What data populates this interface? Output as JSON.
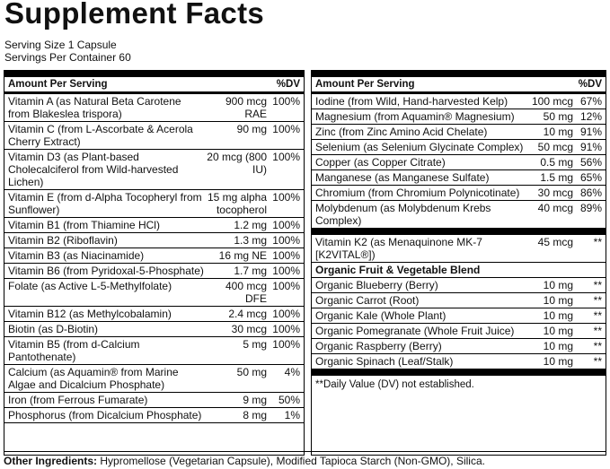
{
  "title": "Supplement Facts",
  "serving": [
    "Serving Size 1 Capsule",
    "Servings Per Container 60"
  ],
  "left": {
    "header": {
      "amount": "Amount Per Serving",
      "dv": "%DV"
    },
    "rows": [
      {
        "name": "Vitamin A (as Natural Beta Carotene from Blakeslea trispora)",
        "amount": "900 mcg RAE",
        "dv": "100%"
      },
      {
        "name": "Vitamin C (from L-Ascorbate & Acerola Cherry Extract)",
        "amount": "90 mg",
        "dv": "100%"
      },
      {
        "name": "Vitamin D3 (as Plant-based Cholecalciferol from Wild-harvested Lichen)",
        "amount": "20 mcg (800 IU)",
        "dv": "100%"
      },
      {
        "name": "Vitamin E (from d-Alpha Tocopheryl from Sunflower)",
        "amount": "15 mg alpha tocopherol",
        "dv": "100%"
      },
      {
        "name": "Vitamin B1 (from Thiamine HCl)",
        "amount": "1.2 mg",
        "dv": "100%"
      },
      {
        "name": "Vitamin B2 (Riboflavin)",
        "amount": "1.3 mg",
        "dv": "100%"
      },
      {
        "name": "Vitamin B3 (as Niacinamide)",
        "amount": "16 mg NE",
        "dv": "100%"
      },
      {
        "name": "Vitamin B6 (from Pyridoxal-5-Phosphate)",
        "amount": "1.7 mg",
        "dv": "100%"
      },
      {
        "name": "Folate (as Active L-5-Methylfolate)",
        "amount": "400 mcg DFE",
        "dv": "100%"
      },
      {
        "name": "Vitamin B12 (as Methylcobalamin)",
        "amount": "2.4 mcg",
        "dv": "100%"
      },
      {
        "name": "Biotin (as D-Biotin)",
        "amount": "30 mcg",
        "dv": "100%"
      },
      {
        "name": "Vitamin B5 (from d-Calcium Pantothenate)",
        "amount": "5 mg",
        "dv": "100%"
      },
      {
        "name": "Calcium (as Aquamin® from Marine Algae and Dicalcium Phosphate)",
        "amount": "50 mg",
        "dv": "4%"
      },
      {
        "name": "Iron (from Ferrous Fumarate)",
        "amount": "9 mg",
        "dv": "50%"
      },
      {
        "name": "Phosphorus (from Dicalcium Phosphate)",
        "amount": "8 mg",
        "dv": "1%"
      }
    ]
  },
  "right": {
    "header": {
      "amount": "Amount Per Serving",
      "dv": "%DV"
    },
    "rows": [
      {
        "name": "Iodine (from Wild, Hand-harvested Kelp)",
        "amount": "100 mcg",
        "dv": "67%"
      },
      {
        "name": "Magnesium (from Aquamin® Magnesium)",
        "amount": "50 mg",
        "dv": "12%"
      },
      {
        "name": "Zinc (from Zinc Amino Acid Chelate)",
        "amount": "10 mg",
        "dv": "91%"
      },
      {
        "name": "Selenium (as Selenium Glycinate Complex)",
        "amount": "50 mcg",
        "dv": "91%"
      },
      {
        "name": "Copper (as Copper Citrate)",
        "amount": "0.5 mg",
        "dv": "56%"
      },
      {
        "name": "Manganese (as Manganese Sulfate)",
        "amount": "1.5 mg",
        "dv": "65%"
      },
      {
        "name": "Chromium (from Chromium Polynicotinate)",
        "amount": "30 mcg",
        "dv": "86%"
      },
      {
        "name": "Molybdenum (as Molybdenum Krebs Complex)",
        "amount": "40 mcg",
        "dv": "89%"
      }
    ],
    "k2": {
      "name": "Vitamin K2 (as Menaquinone MK-7 [K2VITAL®])",
      "amount": "45 mcg",
      "dv": "**"
    },
    "blend": {
      "title": "Organic Fruit & Vegetable Blend",
      "rows": [
        {
          "name": "Organic Blueberry (Berry)",
          "amount": "10 mg",
          "dv": "**"
        },
        {
          "name": "Organic Carrot (Root)",
          "amount": "10 mg",
          "dv": "**"
        },
        {
          "name": "Organic Kale (Whole Plant)",
          "amount": "10 mg",
          "dv": "**"
        },
        {
          "name": "Organic Pomegranate (Whole Fruit Juice)",
          "amount": "10 mg",
          "dv": "**"
        },
        {
          "name": "Organic Raspberry (Berry)",
          "amount": "10 mg",
          "dv": "**"
        },
        {
          "name": "Organic Spinach (Leaf/Stalk)",
          "amount": "10 mg",
          "dv": "**"
        }
      ]
    },
    "footnote": "**Daily Value (DV) not established."
  },
  "other": {
    "label": "Other Ingredients:",
    "text": "Hypromellose (Vegetarian Capsule), Modified Tapioca Starch (Non-GMO), Silica."
  }
}
